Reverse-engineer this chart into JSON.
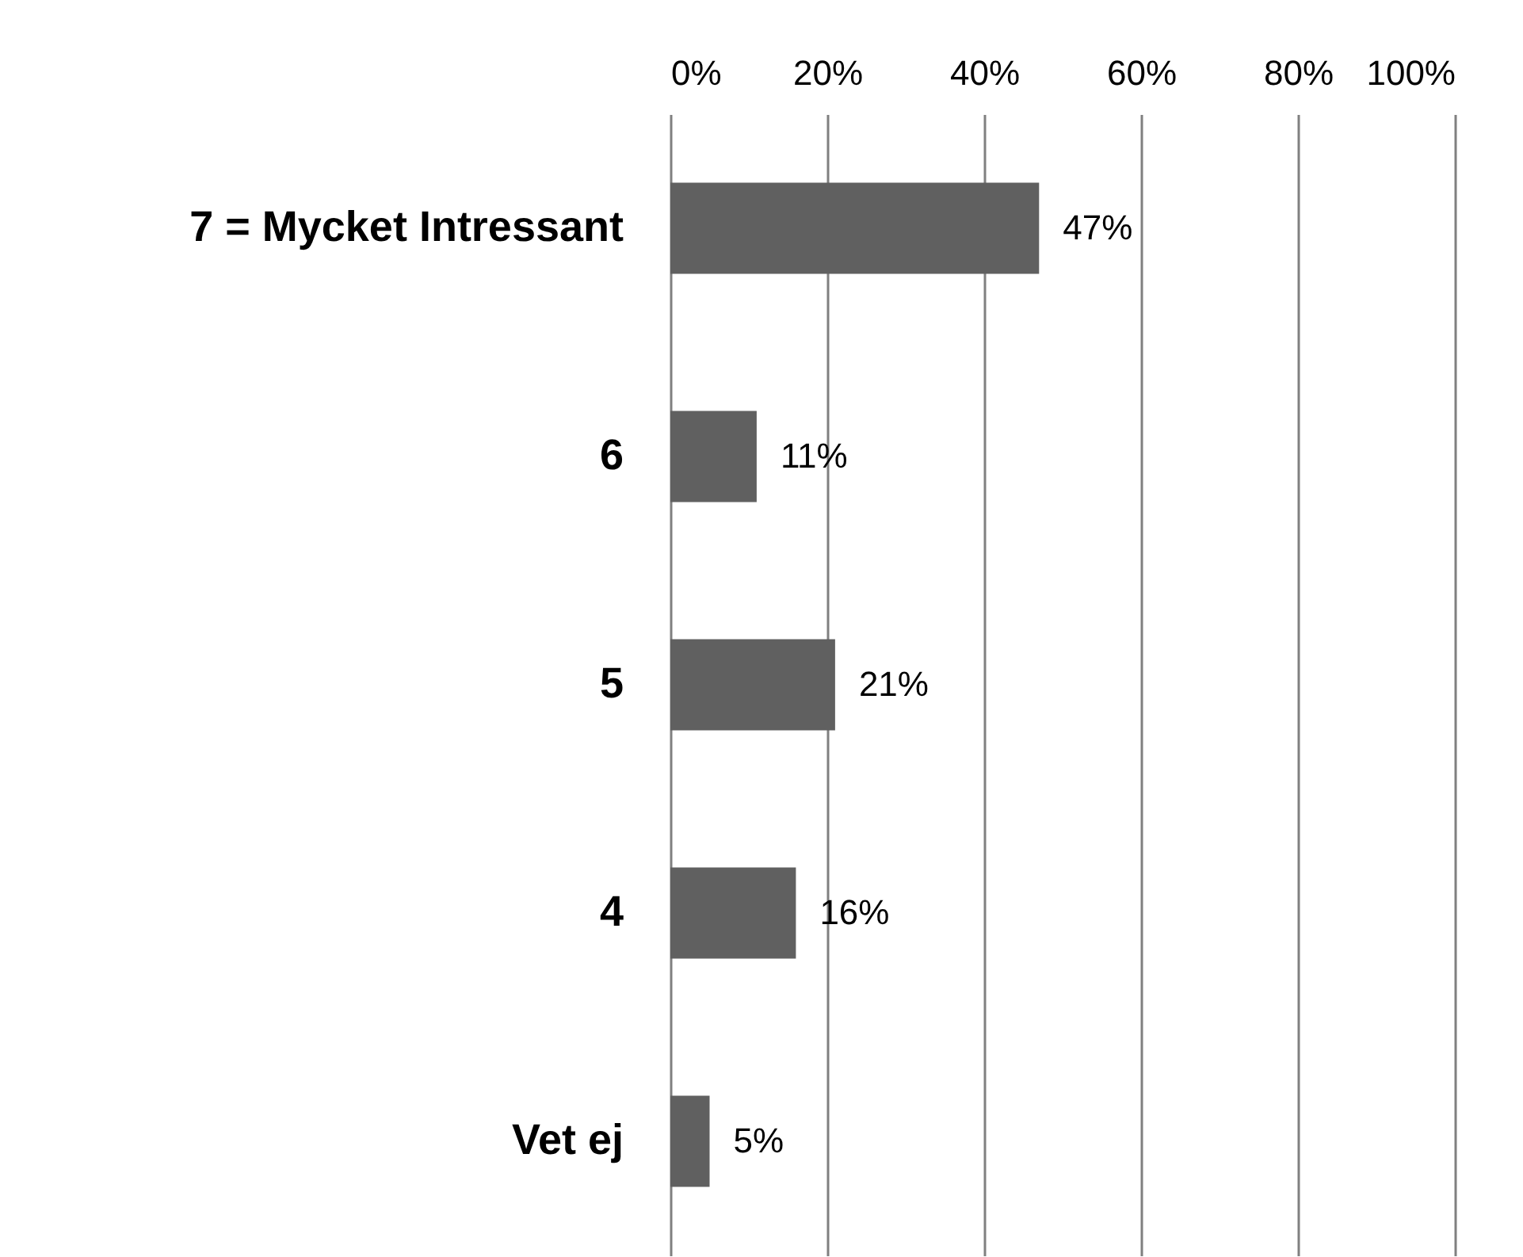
{
  "chart_data": {
    "type": "bar",
    "orientation": "horizontal",
    "categories": [
      "7 = Mycket Intressant",
      "6",
      "5",
      "4",
      "Vet ej"
    ],
    "values": [
      47,
      11,
      21,
      16,
      5
    ],
    "value_labels": [
      "47%",
      "11%",
      "21%",
      "16%",
      "5%"
    ],
    "color": "#606060",
    "xlim": [
      0,
      100
    ],
    "xticks": [
      {
        "value": 0,
        "label": "0%"
      },
      {
        "value": 20,
        "label": "20%"
      },
      {
        "value": 40,
        "label": "40%"
      },
      {
        "value": 60,
        "label": "60%"
      },
      {
        "value": 80,
        "label": "80%"
      },
      {
        "value": 100,
        "label": "100%"
      }
    ],
    "grid": "x"
  }
}
